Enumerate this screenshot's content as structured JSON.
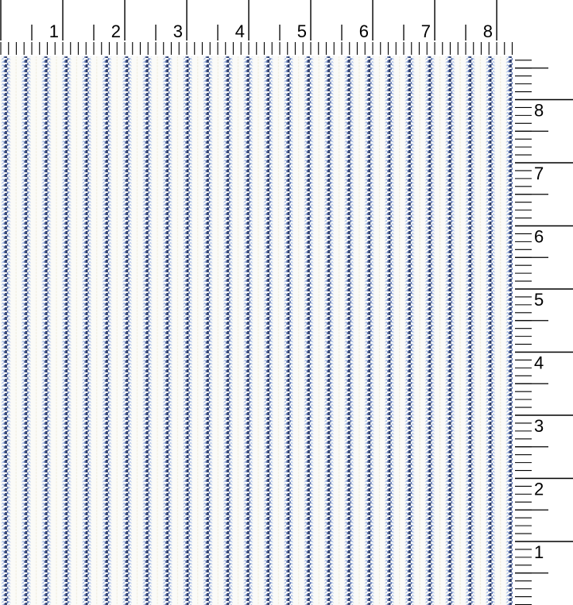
{
  "app": {
    "description": "Blue ticking stripe fabric swatch displayed with inch scale rulers along the top and right edges"
  },
  "top_ruler": {
    "unit": "inches",
    "labels": [
      "1",
      "2",
      "3",
      "4",
      "5",
      "6",
      "7",
      "8"
    ],
    "tick_color": "#000000",
    "text_color": "#000000",
    "background_color": "#ffffff"
  },
  "right_ruler": {
    "unit": "inches",
    "labels": [
      "8",
      "7",
      "6",
      "5",
      "4",
      "3",
      "2",
      "1"
    ],
    "tick_color": "#000000",
    "text_color": "#000000",
    "background_color": "#ffffff"
  },
  "fabric": {
    "pattern_name": "blue-ticking-stripe",
    "visible_stripe_clusters": 26,
    "background_color": "#fbfbf8",
    "colors": {
      "navy": "#2e3e6c",
      "blue": "#6078b6",
      "light_blue": "#b5c7e9",
      "pale_blue": "#dbe4f4",
      "cream": "#f0edde"
    }
  }
}
